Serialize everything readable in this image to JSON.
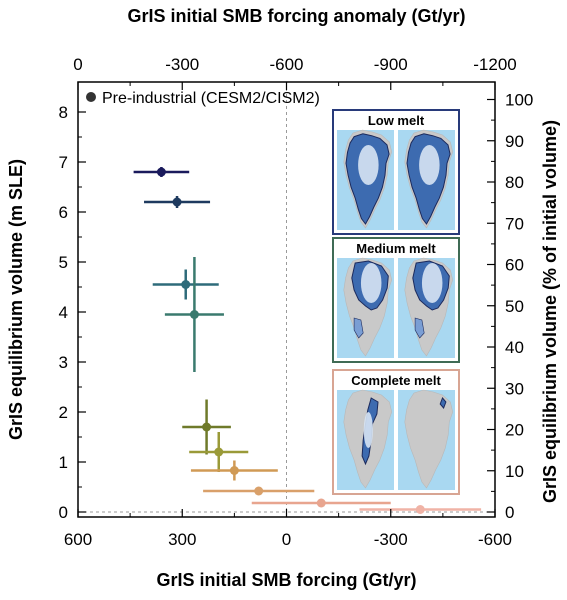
{
  "chart_data": {
    "type": "scatter",
    "title": "",
    "xlabel": "GrIS initial SMB forcing (Gt/yr)",
    "x2label": "GrIS initial SMB forcing anomaly (Gt/yr)",
    "ylabel": "GrIS equilibrium volume (m SLE)",
    "y2label": "GrIS equilibrium volume (% of initial volume)",
    "xlim": [
      600,
      -600
    ],
    "ylim": [
      -0.1,
      8.6
    ],
    "x2lim": [
      0,
      -1200
    ],
    "y2lim": [
      0,
      100
    ],
    "xticks": [
      "600",
      "300",
      "0",
      "-300",
      "-600"
    ],
    "x2ticks": [
      "0",
      "-300",
      "-600",
      "-900",
      "-1200"
    ],
    "yticks": [
      "0",
      "1",
      "2",
      "3",
      "4",
      "5",
      "6",
      "7",
      "8"
    ],
    "y2ticks": [
      "0",
      "10",
      "20",
      "30",
      "40",
      "50",
      "60",
      "70",
      "80",
      "90",
      "100"
    ],
    "legend": "top-left",
    "legend_label": "Pre-industrial (CESM2/CISM2)",
    "grid": false,
    "reference_lines": {
      "x": 0,
      "y": 0
    },
    "series": [
      {
        "points": [
          {
            "x": 360,
            "y": 6.8,
            "xerr": 80,
            "yerr": 0.1,
            "color": "#1a1a5c"
          },
          {
            "x": 315,
            "y": 6.2,
            "xerr": 95,
            "yerr": 0.12,
            "color": "#1e3a5f"
          },
          {
            "x": 290,
            "y": 4.55,
            "xerr": 95,
            "yerr": 0.3,
            "color": "#2e6b7a"
          },
          {
            "x": 265,
            "y": 3.95,
            "xerr": 85,
            "yerr": 1.15,
            "color": "#3a7a6e"
          },
          {
            "x": 230,
            "y": 1.7,
            "xerr": 70,
            "yerr": 0.55,
            "color": "#6f7a2a"
          },
          {
            "x": 195,
            "y": 1.2,
            "xerr": 85,
            "yerr": 0.4,
            "color": "#9a9a38"
          },
          {
            "x": 150,
            "y": 0.83,
            "xerr": 125,
            "yerr": 0.2,
            "color": "#d09a55"
          },
          {
            "x": 80,
            "y": 0.42,
            "xerr": 160,
            "yerr": 0.07,
            "color": "#d9a06a"
          },
          {
            "x": -100,
            "y": 0.18,
            "xerr": 200,
            "yerr": 0.05,
            "color": "#e8a58f"
          },
          {
            "x": -385,
            "y": 0.05,
            "xerr": 175,
            "yerr": 0.04,
            "color": "#f0b3a6"
          }
        ]
      }
    ]
  },
  "panels": [
    {
      "title": "Low melt",
      "border": "#283a7a"
    },
    {
      "title": "Medium melt",
      "border": "#3f6b55"
    },
    {
      "title": "Complete melt",
      "border": "#d8a593"
    }
  ],
  "colors": {
    "legend_marker": "#333333",
    "axis": "#000000",
    "refline": "#9a9a9a"
  }
}
